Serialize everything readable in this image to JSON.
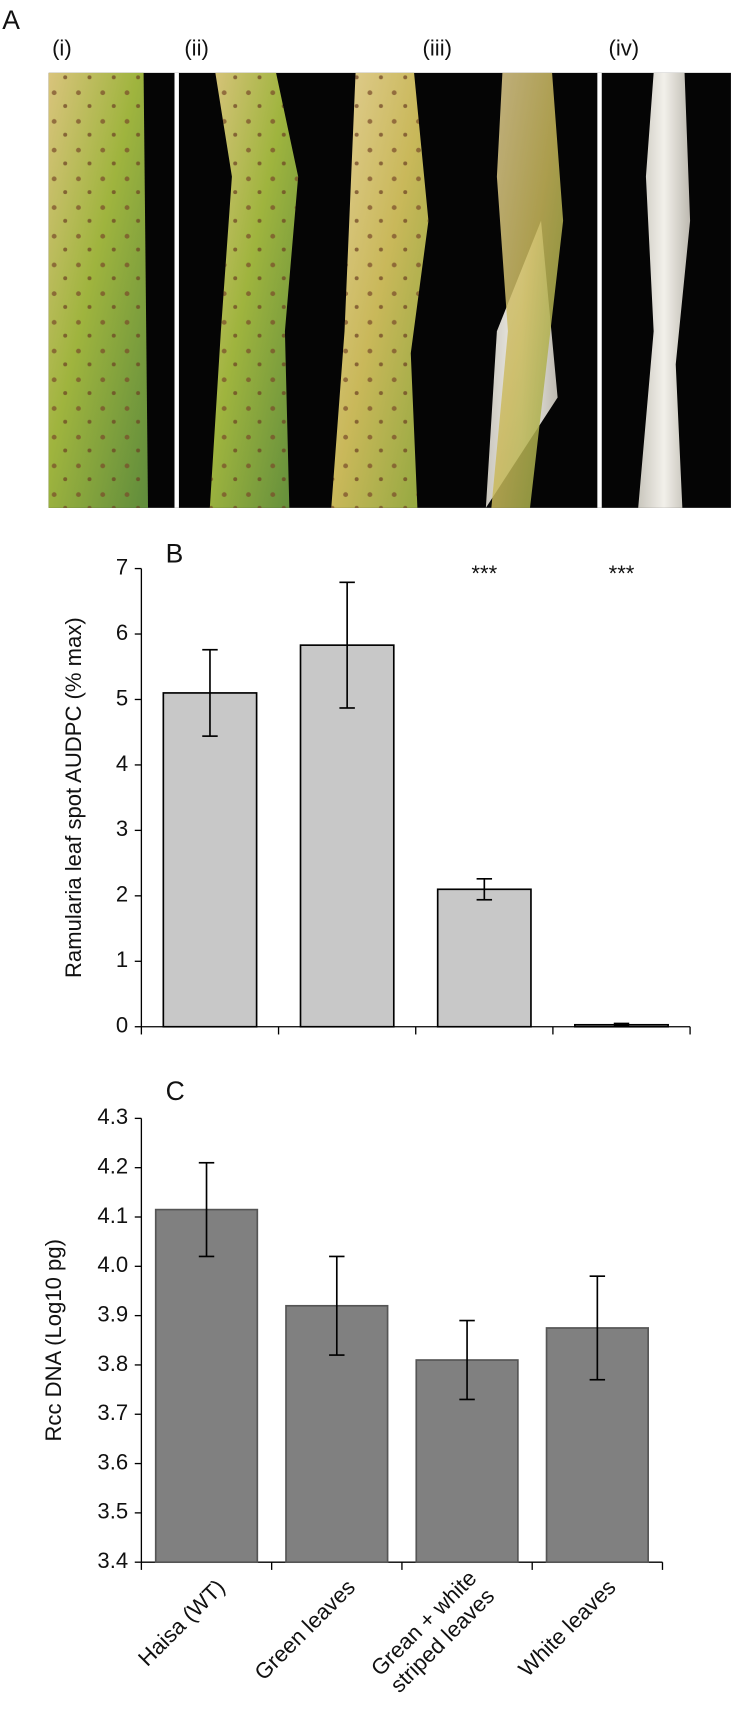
{
  "panel_a": {
    "label": "A",
    "leaf_labels": [
      "(i)",
      "(ii)",
      "(iii)",
      "(iv)"
    ]
  },
  "chart_data": [
    {
      "type": "bar",
      "title": "B",
      "y_label": "Ramularia leaf spot AUDPC (% max)",
      "values": [
        5.1,
        5.83,
        2.1,
        0.03
      ],
      "errors": [
        0.66,
        0.96,
        0.16,
        0.02
      ],
      "annotations": [
        null,
        null,
        "***",
        "***"
      ],
      "color": "#c8c8c8",
      "ylim": [
        0,
        7
      ],
      "yticks": [
        0,
        1,
        2,
        3,
        4,
        5,
        6,
        7
      ]
    },
    {
      "type": "bar",
      "title": "C",
      "y_label": "Rcc DNA (Log10 pg)",
      "categories": [
        "Haisa (WT)",
        "Green leaves",
        "Grean + white\nstriped leaves",
        "White leaves"
      ],
      "values": [
        4.115,
        3.92,
        3.81,
        3.875
      ],
      "errors": [
        0.095,
        0.1,
        0.08,
        0.105
      ],
      "color": "#808080",
      "ylim": [
        3.4,
        4.3
      ],
      "yticks": [
        3.4,
        3.5,
        3.6,
        3.7,
        3.8,
        3.9,
        {
          "value": 4,
          "label": "4.0"
        },
        4.1,
        4.2,
        4.3
      ]
    }
  ]
}
